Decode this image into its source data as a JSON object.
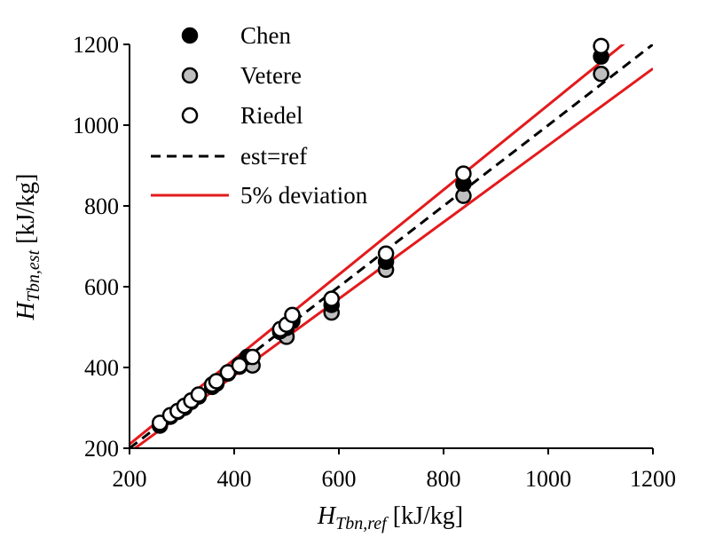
{
  "chart_data": {
    "type": "scatter",
    "xlabel": {
      "main": "H",
      "sub": "Tbn,ref",
      "unit": " [kJ/kg]"
    },
    "ylabel": {
      "main": "H",
      "sub": "Tbn,est",
      "unit": " [kJ/kg]"
    },
    "xlim": [
      200,
      1200
    ],
    "ylim": [
      200,
      1200
    ],
    "xticks": [
      200,
      400,
      600,
      800,
      1000,
      1200
    ],
    "yticks": [
      200,
      400,
      600,
      800,
      1000,
      1200
    ],
    "grid": false,
    "legend_position": "top-left",
    "series": [
      {
        "name": "Chen",
        "marker": "circle",
        "fill": "#000000",
        "stroke": "#000000",
        "points": [
          [
            258,
            258
          ],
          [
            278,
            280
          ],
          [
            292,
            292
          ],
          [
            305,
            304
          ],
          [
            318,
            318
          ],
          [
            332,
            330
          ],
          [
            358,
            356
          ],
          [
            366,
            365
          ],
          [
            388,
            388
          ],
          [
            410,
            407
          ],
          [
            425,
            426
          ],
          [
            488,
            490
          ],
          [
            500,
            498
          ],
          [
            511,
            520
          ],
          [
            586,
            555
          ],
          [
            690,
            662
          ],
          [
            838,
            855
          ],
          [
            1101,
            1170
          ]
        ]
      },
      {
        "name": "Vetere",
        "marker": "circle",
        "fill": "#bfbfbf",
        "stroke": "#000000",
        "points": [
          [
            258,
            256
          ],
          [
            278,
            278
          ],
          [
            292,
            290
          ],
          [
            305,
            300
          ],
          [
            318,
            315
          ],
          [
            332,
            328
          ],
          [
            358,
            352
          ],
          [
            366,
            360
          ],
          [
            388,
            385
          ],
          [
            410,
            402
          ],
          [
            435,
            405
          ],
          [
            488,
            488
          ],
          [
            500,
            476
          ],
          [
            511,
            515
          ],
          [
            586,
            536
          ],
          [
            690,
            642
          ],
          [
            838,
            825
          ],
          [
            1101,
            1127
          ]
        ]
      },
      {
        "name": "Riedel",
        "marker": "circle",
        "fill": "#ffffff",
        "stroke": "#000000",
        "points": [
          [
            258,
            263
          ],
          [
            278,
            282
          ],
          [
            292,
            292
          ],
          [
            305,
            305
          ],
          [
            318,
            318
          ],
          [
            332,
            333
          ],
          [
            358,
            358
          ],
          [
            366,
            366
          ],
          [
            388,
            388
          ],
          [
            410,
            405
          ],
          [
            435,
            426
          ],
          [
            488,
            495
          ],
          [
            500,
            506
          ],
          [
            511,
            530
          ],
          [
            586,
            570
          ],
          [
            690,
            682
          ],
          [
            838,
            880
          ],
          [
            1101,
            1196
          ]
        ]
      },
      {
        "name": "est=ref",
        "type": "line",
        "style": "dashed",
        "color": "#000000",
        "x": [
          200,
          1200
        ],
        "y": [
          200,
          1200
        ]
      },
      {
        "name": "5% deviation",
        "type": "line",
        "style": "solid",
        "color": "#e31a1c",
        "lines": [
          {
            "x": [
              200,
              1200
            ],
            "y": [
              210,
              1260
            ]
          },
          {
            "x": [
              200,
              1200
            ],
            "y": [
              190,
              1140
            ]
          }
        ]
      }
    ]
  }
}
